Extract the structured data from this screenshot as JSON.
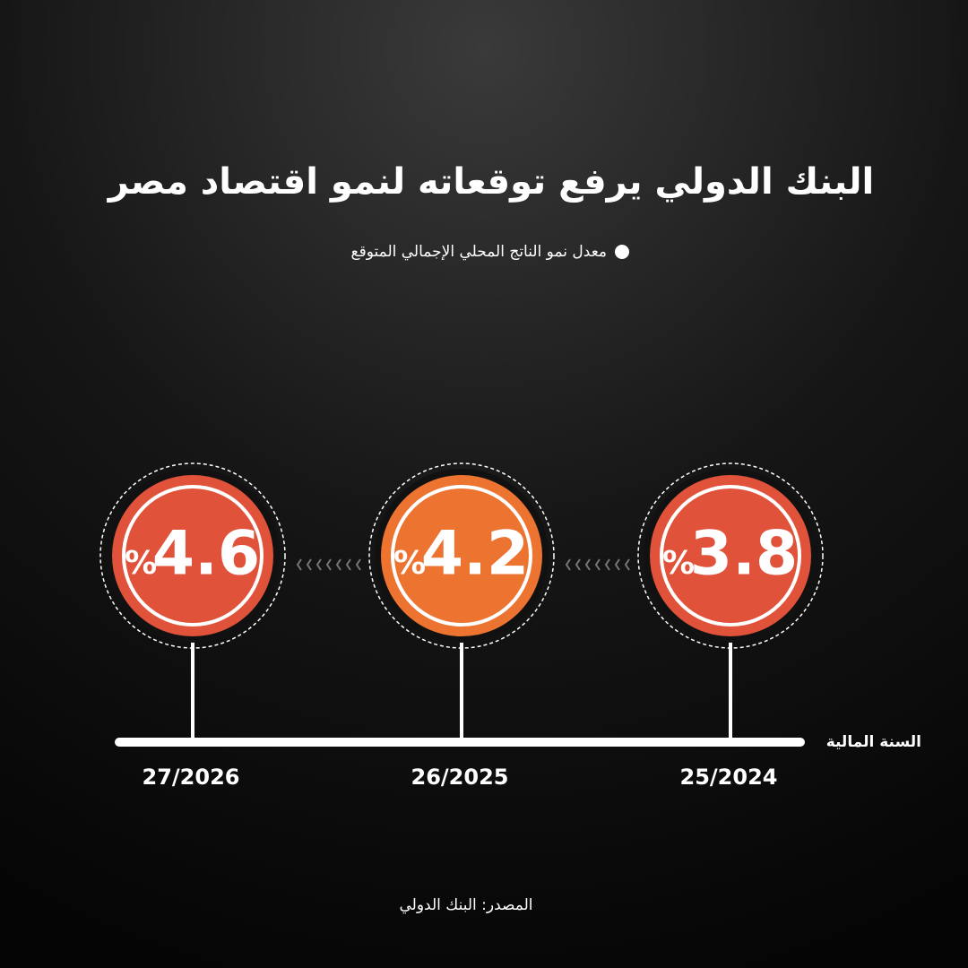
{
  "chart_data": {
    "type": "timeline",
    "title": "البنك الدولي يرفع توقعاته لنمو اقتصاد مصر",
    "categories": [
      "25/2024",
      "26/2025",
      "27/2026"
    ],
    "series": [
      {
        "name": "معدل نمو الناتج المحلي الإجمالي المتوقع",
        "color": "#ffffff",
        "values": [
          3.8,
          4.2,
          4.6
        ],
        "colors": [
          "#e0523a",
          "#ed7430",
          "#e0523a"
        ]
      }
    ],
    "unit": "%",
    "x_label": "السنة المالية",
    "source": "المصدر: البنك الدولي"
  }
}
